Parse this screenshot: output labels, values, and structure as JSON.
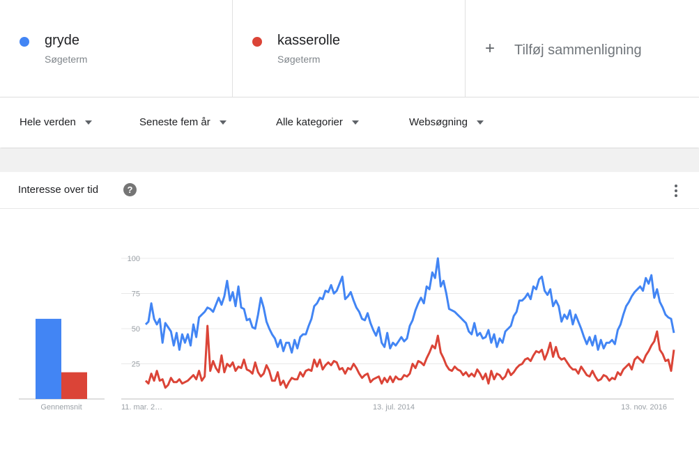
{
  "terms": [
    {
      "name": "gryde",
      "sub": "Søgeterm",
      "color": "#4285f4"
    },
    {
      "name": "kasserolle",
      "sub": "Søgeterm",
      "color": "#db4437"
    }
  ],
  "add_compare": {
    "plus": "+",
    "label": "Tilføj sammenligning"
  },
  "filters": [
    {
      "label": "Hele verden"
    },
    {
      "label": "Seneste fem år"
    },
    {
      "label": "Alle kategorier"
    },
    {
      "label": "Websøgning"
    }
  ],
  "card": {
    "title": "Interesse over tid",
    "help": "?"
  },
  "chart_data": {
    "type": "line",
    "ylim": [
      0,
      100
    ],
    "yticks": [
      100,
      75,
      50,
      25
    ],
    "x_tick_labels": [
      "11. mar. 2…",
      "13. jul. 2014",
      "13. nov. 2016"
    ],
    "x_range": [
      "2012-03-11",
      "2017-03-05"
    ],
    "average_bars": {
      "label": "Gennemsnit",
      "values": [
        57,
        19
      ]
    },
    "series": [
      {
        "name": "gryde",
        "color": "#4285f4",
        "values": [
          53,
          55,
          68,
          57,
          53,
          57,
          40,
          54,
          51,
          48,
          38,
          47,
          35,
          46,
          40,
          46,
          38,
          53,
          44,
          58,
          60,
          62,
          65,
          64,
          62,
          67,
          72,
          67,
          73,
          84,
          70,
          76,
          66,
          80,
          65,
          64,
          56,
          57,
          51,
          50,
          60,
          72,
          65,
          55,
          50,
          46,
          43,
          37,
          42,
          34,
          40,
          40,
          33,
          42,
          36,
          44,
          46,
          46,
          52,
          57,
          66,
          68,
          72,
          71,
          77,
          76,
          81,
          75,
          77,
          82,
          87,
          71,
          73,
          76,
          70,
          65,
          62,
          57,
          56,
          61,
          54,
          49,
          45,
          51,
          40,
          37,
          47,
          36,
          40,
          38,
          41,
          44,
          41,
          43,
          52,
          56,
          63,
          68,
          72,
          68,
          80,
          78,
          90,
          86,
          100,
          80,
          84,
          75,
          64,
          63,
          62,
          60,
          58,
          56,
          54,
          48,
          46,
          54,
          45,
          47,
          43,
          44,
          49,
          40,
          46,
          37,
          43,
          40,
          48,
          50,
          52,
          59,
          62,
          70,
          70,
          72,
          75,
          71,
          80,
          78,
          85,
          87,
          77,
          74,
          78,
          66,
          70,
          66,
          55,
          60,
          57,
          63,
          53,
          60,
          55,
          50,
          44,
          39,
          44,
          38,
          45,
          35,
          42,
          36,
          40,
          40,
          42,
          39,
          49,
          53,
          60,
          66,
          69,
          73,
          76,
          78,
          80,
          77,
          86,
          82,
          88,
          72,
          78,
          69,
          65,
          60,
          58,
          57,
          47
        ]
      },
      {
        "name": "kasserolle",
        "color": "#db4437",
        "values": [
          13,
          11,
          18,
          13,
          20,
          13,
          14,
          8,
          10,
          15,
          12,
          12,
          14,
          11,
          12,
          13,
          15,
          17,
          14,
          20,
          13,
          16,
          52,
          20,
          27,
          22,
          19,
          31,
          19,
          25,
          23,
          26,
          20,
          23,
          22,
          28,
          21,
          20,
          18,
          26,
          19,
          16,
          18,
          24,
          20,
          13,
          13,
          19,
          10,
          13,
          8,
          12,
          15,
          14,
          14,
          19,
          16,
          20,
          21,
          20,
          28,
          23,
          28,
          21,
          24,
          26,
          24,
          27,
          26,
          21,
          22,
          18,
          22,
          21,
          25,
          22,
          18,
          15,
          17,
          18,
          12,
          14,
          15,
          16,
          11,
          15,
          12,
          16,
          12,
          16,
          14,
          14,
          17,
          16,
          18,
          25,
          22,
          27,
          26,
          24,
          29,
          33,
          38,
          36,
          45,
          33,
          29,
          24,
          21,
          20,
          23,
          21,
          20,
          17,
          19,
          16,
          18,
          16,
          21,
          18,
          14,
          18,
          11,
          20,
          14,
          18,
          17,
          14,
          16,
          21,
          17,
          19,
          22,
          24,
          25,
          28,
          29,
          27,
          31,
          34,
          33,
          35,
          28,
          33,
          40,
          30,
          37,
          30,
          28,
          29,
          26,
          23,
          21,
          21,
          18,
          23,
          20,
          17,
          16,
          20,
          16,
          13,
          14,
          17,
          16,
          13,
          15,
          14,
          19,
          17,
          21,
          23,
          25,
          21,
          28,
          30,
          28,
          26,
          31,
          34,
          38,
          41,
          48,
          35,
          32,
          27,
          28,
          20,
          35
        ]
      }
    ]
  }
}
